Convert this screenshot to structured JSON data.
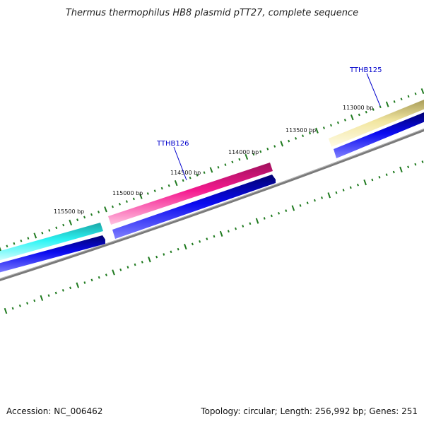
{
  "title": "Thermus thermophilus HB8 plasmid pTT27, complete sequence",
  "tick_labels": {
    "t113000": "113000 bp",
    "t113500": "113500 bp",
    "t114000": "114000 bp",
    "t114500": "114500 bp",
    "t115000": "115000 bp",
    "t115500": "115500 bp"
  },
  "genes": {
    "TTHB125": "TTHB125",
    "TTHB126": "TTHB126"
  },
  "footer": {
    "accession": "Accession: NC_006462",
    "summary": "Topology: circular; Length: 256,992 bp; Genes: 251"
  },
  "colors": {
    "gene_cyan": "#22f0f0",
    "gene_magenta": "#f01a8c",
    "gene_khaki": "#f0e6a0",
    "cds_blue": "#0a0aee",
    "backbone": "#808080",
    "ticks": "#1f7a1f"
  }
}
